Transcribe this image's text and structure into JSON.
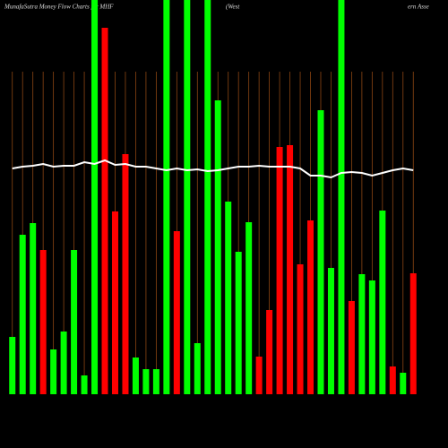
{
  "chart_data": {
    "type": "bar",
    "title": "MunafaSutra  Money Flow  Charts for MHF",
    "subtitle_parts": [
      "(West",
      "ern  Asse"
    ],
    "categories": [
      null,
      null,
      null,
      null,
      null,
      null,
      null,
      null,
      null,
      null,
      null,
      null,
      null,
      null,
      null,
      null,
      null,
      null,
      null,
      null,
      null,
      null,
      null,
      null,
      null,
      null,
      null,
      null,
      null,
      null,
      null,
      null,
      null,
      null,
      null,
      null,
      null,
      null,
      null,
      null
    ],
    "values": [
      64,
      178,
      191,
      161,
      50,
      70,
      161,
      21,
      440,
      409,
      204,
      268,
      41,
      28,
      28,
      440,
      182,
      440,
      57,
      440,
      328,
      215,
      159,
      192,
      42,
      94,
      276,
      278,
      145,
      194,
      317,
      141,
      440,
      104,
      134,
      127,
      205,
      31,
      24,
      135
    ],
    "colors": [
      "#00ff00",
      "#00ff00",
      "#00ff00",
      "#ff0000",
      "#00ff00",
      "#00ff00",
      "#00ff00",
      "#00ff00",
      "#00ff00",
      "#ff0000",
      "#ff0000",
      "#ff0000",
      "#00ff00",
      "#00ff00",
      "#00ff00",
      "#00ff00",
      "#ff0000",
      "#00ff00",
      "#00ff00",
      "#00ff00",
      "#00ff00",
      "#00ff00",
      "#00ff00",
      "#00ff00",
      "#ff0000",
      "#ff0000",
      "#ff0000",
      "#ff0000",
      "#ff0000",
      "#ff0000",
      "#00ff00",
      "#00ff00",
      "#00ff00",
      "#ff0000",
      "#00ff00",
      "#00ff00",
      "#00ff00",
      "#ff0000",
      "#00ff00",
      "#ff0000"
    ],
    "line": {
      "color": "#ffffff",
      "values": [
        252,
        254,
        255,
        257,
        254,
        255,
        255,
        259,
        257,
        261,
        256,
        257,
        254,
        254,
        252,
        250,
        252,
        250,
        251,
        249,
        250,
        252,
        254,
        254,
        255,
        254,
        254,
        254,
        252,
        244,
        244,
        242,
        247,
        248,
        247,
        244,
        247,
        250,
        252,
        250
      ]
    },
    "ylim": [
      0,
      440
    ],
    "grid": true,
    "grid_color": "#8b4513"
  }
}
